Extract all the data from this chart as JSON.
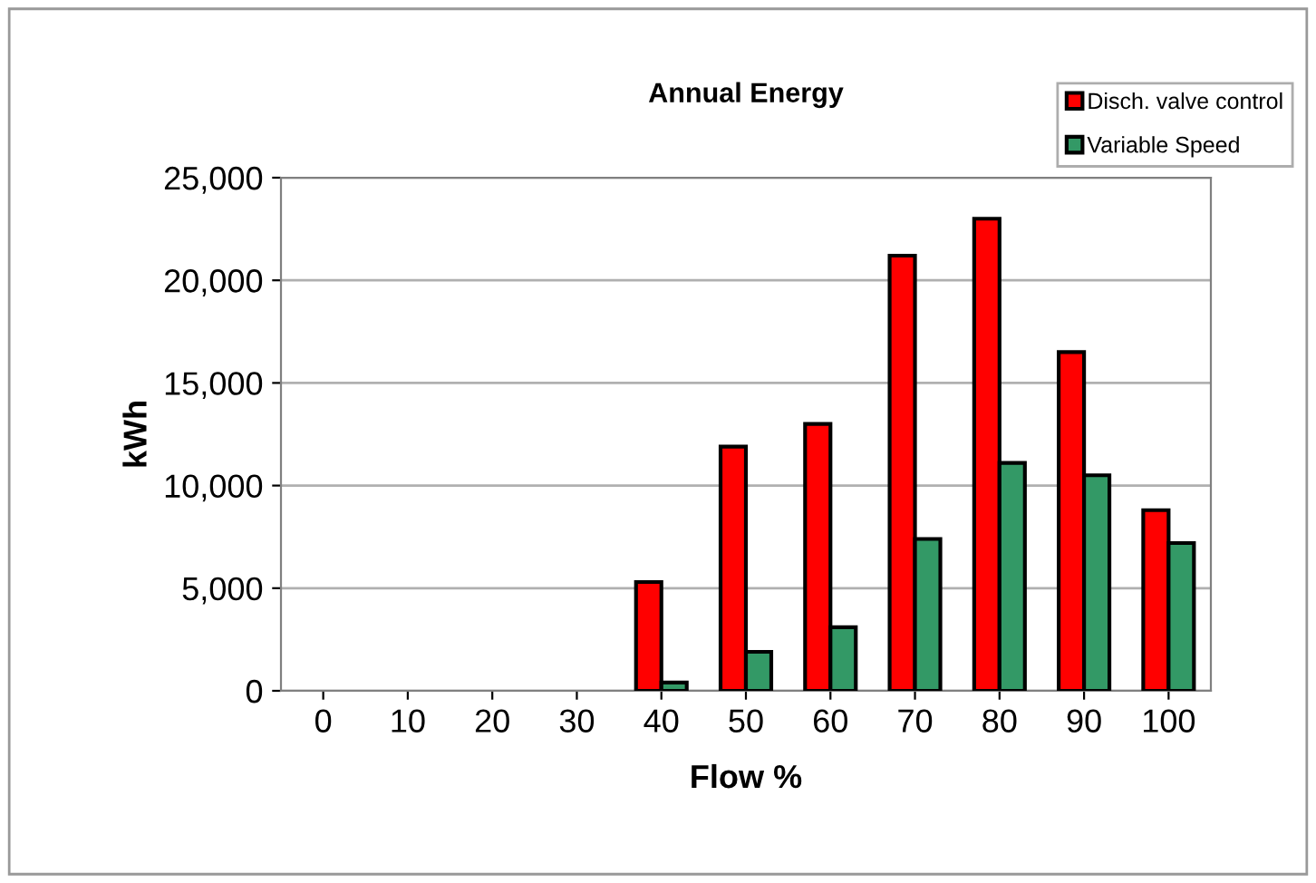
{
  "chart_data": {
    "type": "bar",
    "title": "Annual Energy",
    "xlabel": "Flow %",
    "ylabel": "kWh",
    "categories": [
      "0",
      "10",
      "20",
      "30",
      "40",
      "50",
      "60",
      "70",
      "80",
      "90",
      "100"
    ],
    "series": [
      {
        "name": "Disch. valve control",
        "color": "#ff0000",
        "values": [
          null,
          null,
          null,
          null,
          5300,
          11900,
          13000,
          21200,
          23000,
          16500,
          8800
        ]
      },
      {
        "name": "Variable Speed",
        "color": "#339966",
        "values": [
          null,
          null,
          null,
          null,
          400,
          1900,
          3100,
          7400,
          11100,
          10500,
          7200
        ]
      }
    ],
    "ylim": [
      0,
      25000
    ],
    "yticks": [
      {
        "value": 0,
        "label": "0"
      },
      {
        "value": 5000,
        "label": "5,000"
      },
      {
        "value": 10000,
        "label": "10,000"
      },
      {
        "value": 15000,
        "label": "15,000"
      },
      {
        "value": 20000,
        "label": "20,000"
      },
      {
        "value": 25000,
        "label": "25,000"
      }
    ],
    "grid": "y",
    "legend": "top right"
  }
}
